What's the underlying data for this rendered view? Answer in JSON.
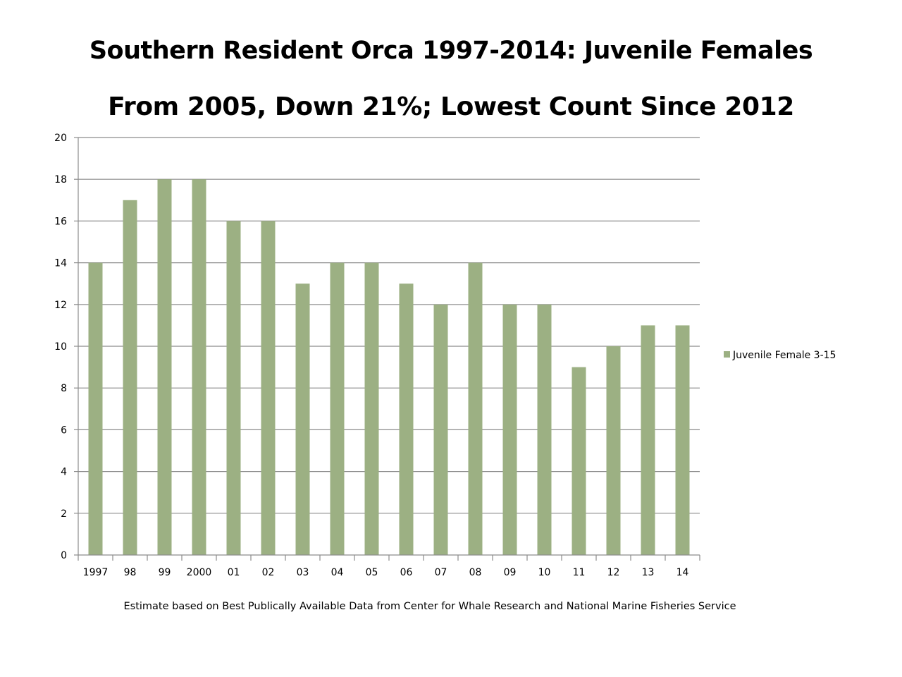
{
  "colors": {
    "bar": "#9cb083",
    "grid": "#8c8c8c",
    "axis": "#8c8c8c",
    "background": "#ffffff"
  },
  "chart_data": {
    "type": "bar",
    "title": "Southern Resident Orca 1997-2014:  Juvenile Females",
    "subtitle": "From 2005, Down 21%; Lowest Count Since 2012",
    "categories": [
      "1997",
      "98",
      "99",
      "2000",
      "01",
      "02",
      "03",
      "04",
      "05",
      "06",
      "07",
      "08",
      "09",
      "10",
      "11",
      "12",
      "13",
      "14"
    ],
    "series": [
      {
        "name": "Juvenile Female 3-15",
        "values": [
          14,
          17,
          18,
          18,
          16,
          16,
          13,
          14,
          14,
          13,
          12,
          14,
          12,
          12,
          9,
          10,
          11,
          11
        ]
      }
    ],
    "ylim": [
      0,
      20
    ],
    "yticks": [
      0,
      2,
      4,
      6,
      8,
      10,
      12,
      14,
      16,
      18,
      20
    ],
    "xlabel": "",
    "ylabel": "",
    "grid": true,
    "legend_position": "right"
  },
  "footnote": "Estimate based on Best Publically Available Data from Center for Whale Research and National Marine Fisheries Service"
}
